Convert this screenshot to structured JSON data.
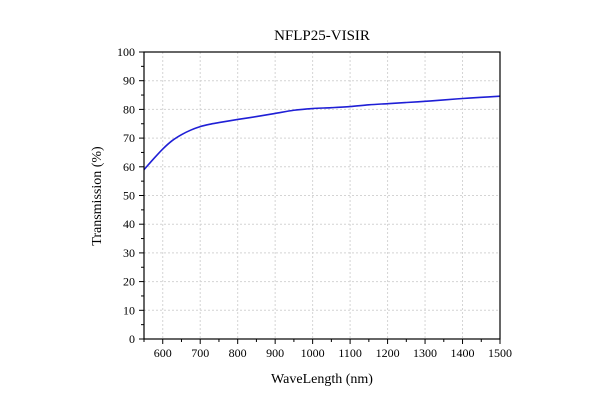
{
  "chart_data": {
    "type": "line",
    "title": "NFLP25-VISIR",
    "xlabel": "WaveLength (nm)",
    "ylabel": "Transmission (%)",
    "xlim": [
      550,
      1500
    ],
    "ylim": [
      0,
      100
    ],
    "x_ticks": [
      600,
      700,
      800,
      900,
      1000,
      1100,
      1200,
      1300,
      1400,
      1500
    ],
    "y_ticks": [
      0,
      10,
      20,
      30,
      40,
      50,
      60,
      70,
      80,
      90,
      100
    ],
    "grid": true,
    "line_color": "#1f1fd6",
    "series": [
      {
        "x": [
          550,
          575,
          600,
          625,
          650,
          675,
          700,
          725,
          750,
          800,
          850,
          900,
          950,
          1000,
          1050,
          1100,
          1150,
          1200,
          1250,
          1300,
          1350,
          1400,
          1450,
          1500
        ],
        "y": [
          59.0,
          62.7,
          66.2,
          69.1,
          71.2,
          72.8,
          74.0,
          74.8,
          75.4,
          76.5,
          77.5,
          78.6,
          79.7,
          80.3,
          80.6,
          81.0,
          81.6,
          82.0,
          82.4,
          82.8,
          83.3,
          83.8,
          84.2,
          84.6
        ]
      }
    ]
  }
}
